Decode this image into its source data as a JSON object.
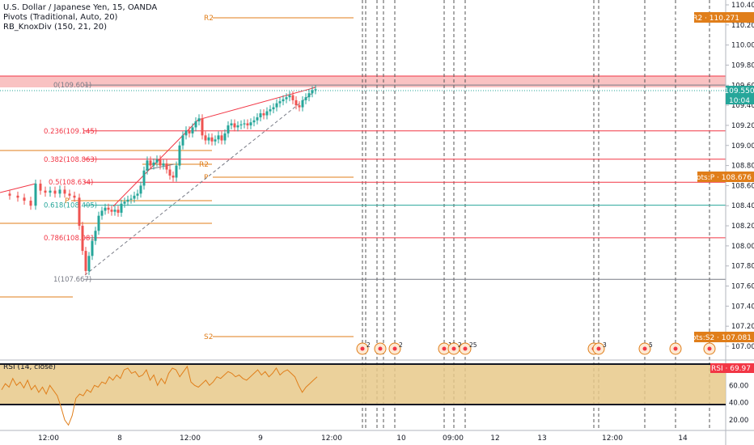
{
  "legend": {
    "symbol": "U.S. Dollar / Japanese Yen, 15, OANDA",
    "pivots": "Pivots (Traditional, Auto, 20)",
    "knox": "RB_KnoxDiv (150, 21, 20)"
  },
  "price_axis": {
    "ticks": [
      "110.400",
      "110.200",
      "110.000",
      "109.800",
      "109.600",
      "109.400",
      "109.200",
      "109.000",
      "108.800",
      "108.600",
      "108.400",
      "108.200",
      "108.000",
      "107.800",
      "107.600",
      "107.400",
      "107.200",
      "107.000"
    ],
    "labels": {
      "pivot_r2": {
        "text": "Pivots:R2 · 110.271",
        "color": "#e07e1a"
      },
      "last_price": {
        "text": "109.550",
        "color": "#26a69a"
      },
      "countdown": {
        "text": "10:04",
        "color": "#26a69a"
      },
      "pivot_p": {
        "text": "Pivots:P · 108.676",
        "color": "#e07e1a"
      },
      "pivot_s2": {
        "text": "Pivots:S2 · 107.081",
        "color": "#e07e1a"
      }
    }
  },
  "pivot_labels": [
    "R2",
    "R2",
    "P",
    "P",
    "S2"
  ],
  "fib_labels": [
    "0(109.601)",
    "0.236(109.145)",
    "0.382(108.863)",
    "0.5(108.634)",
    "0.618(108.405)",
    "0.786(108.081)",
    "1(107.667)"
  ],
  "fib_colors": {
    "red": "#f23645",
    "teal": "#26a69a",
    "grey": "#787b86"
  },
  "rsi": {
    "legend": "RSI (14, close)",
    "value_label": "RSI · 69.97",
    "ticks": [
      "80.00",
      "60.00",
      "40.00",
      "20.00"
    ],
    "band_color": "#e8c98a",
    "line_color": "#e07e1a"
  },
  "time_axis": [
    "12:00",
    "8",
    "12:00",
    "9",
    "12:00",
    "10",
    "09:00",
    "12",
    "13",
    "12:00",
    "14"
  ],
  "events": {
    "counts": [
      "2",
      "2",
      "10",
      "2",
      "25",
      "3",
      "5"
    ]
  },
  "colors": {
    "up": "#26a69a",
    "down": "#ef5350",
    "pivot": "#e07e1a",
    "resistance_zone": "#f8b7b7"
  }
}
